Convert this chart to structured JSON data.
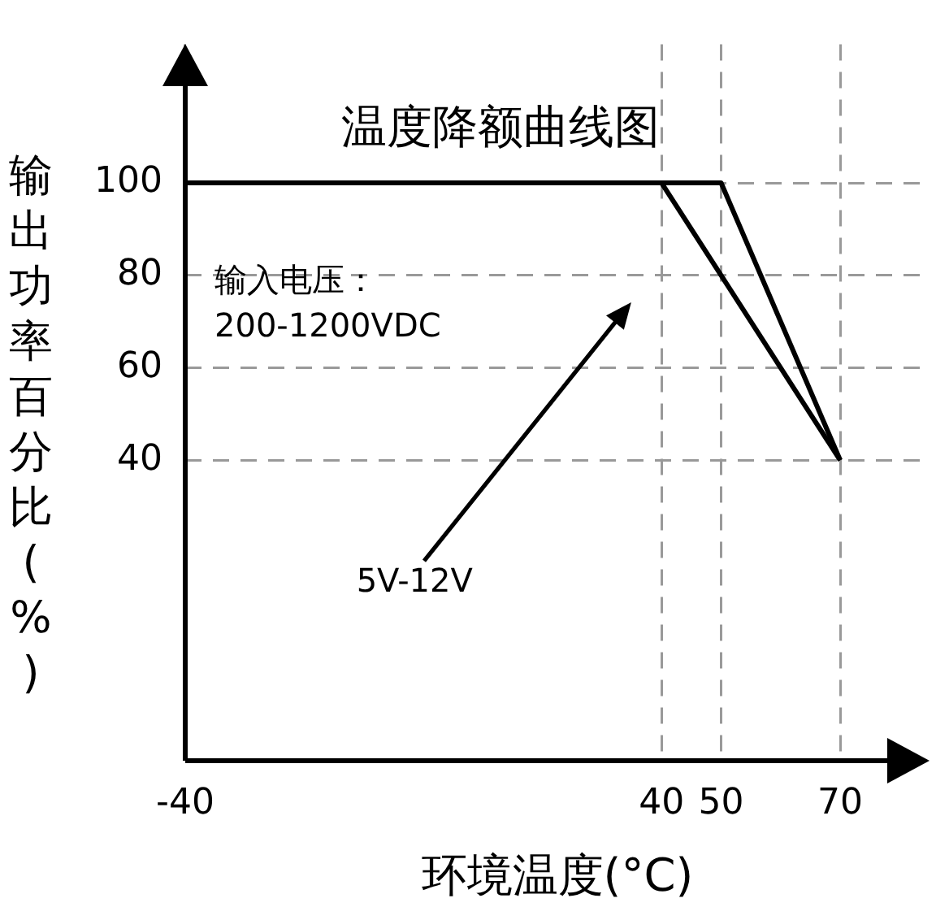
{
  "chart_data": {
    "type": "line",
    "title": "温度降额曲线图",
    "xlabel": "环境温度(°C)",
    "ylabel": "输出功率百分比(%)",
    "xlim": [
      -40,
      85
    ],
    "xticks": [
      -40,
      40,
      50,
      70
    ],
    "ylim": [
      -25,
      130
    ],
    "yticks": [
      40,
      60,
      80,
      100
    ],
    "grid": true,
    "line_style": "solid",
    "marker": "none",
    "series": [
      {
        "color": "#000000",
        "x": [
          -40,
          40,
          70
        ],
        "values": [
          100,
          100,
          40
        ]
      },
      {
        "color": "#000000",
        "x": [
          -40,
          50,
          70
        ],
        "values": [
          100,
          100,
          40
        ]
      }
    ],
    "annotations": [
      "输入电压：\n200-1200VDC",
      "5V-12V"
    ]
  }
}
